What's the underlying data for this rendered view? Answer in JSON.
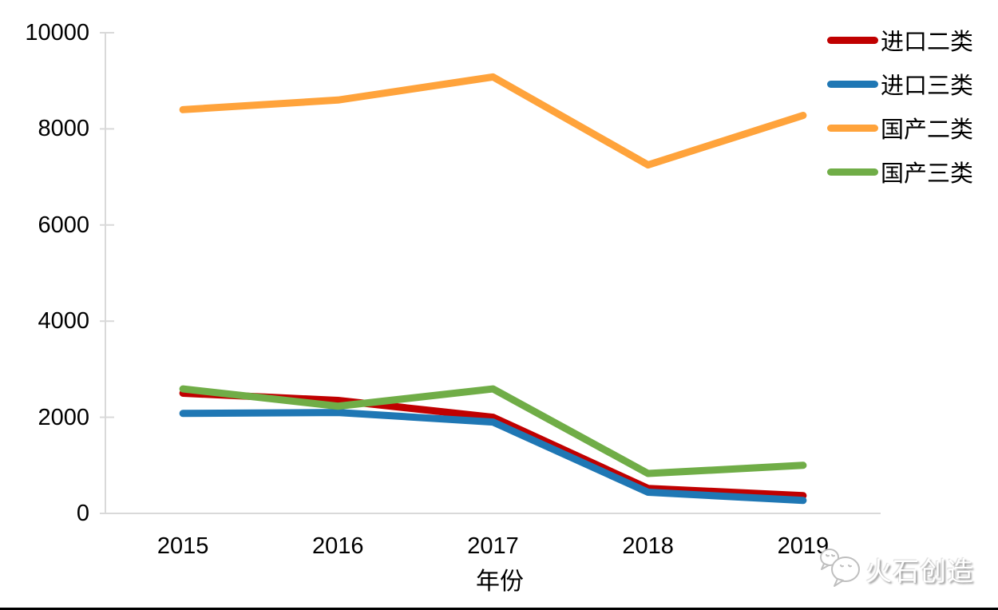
{
  "chart_data": {
    "type": "line",
    "categories": [
      "2015",
      "2016",
      "2017",
      "2018",
      "2019"
    ],
    "series": [
      {
        "name": "进口二类",
        "color": "#C00000",
        "values": [
          2500,
          2350,
          2000,
          520,
          370
        ]
      },
      {
        "name": "进口三类",
        "color": "#1F77B4",
        "values": [
          2080,
          2100,
          1900,
          440,
          270
        ]
      },
      {
        "name": "国产二类",
        "color": "#FFA33B",
        "values": [
          8400,
          8600,
          9080,
          7250,
          8280
        ]
      },
      {
        "name": "国产三类",
        "color": "#70AD47",
        "values": [
          2590,
          2230,
          2590,
          830,
          1000
        ]
      }
    ],
    "title": "",
    "xlabel": "年份",
    "ylabel": "",
    "ylim": [
      0,
      10000
    ],
    "yticks": [
      0,
      2000,
      4000,
      6000,
      8000,
      10000
    ],
    "grid": false,
    "legend_position": "right-top"
  },
  "colors": {
    "axis": "#D9D9D9",
    "text": "#000000"
  },
  "watermark": {
    "text": "火石创造",
    "icon": "wechat-bubbles-icon"
  }
}
